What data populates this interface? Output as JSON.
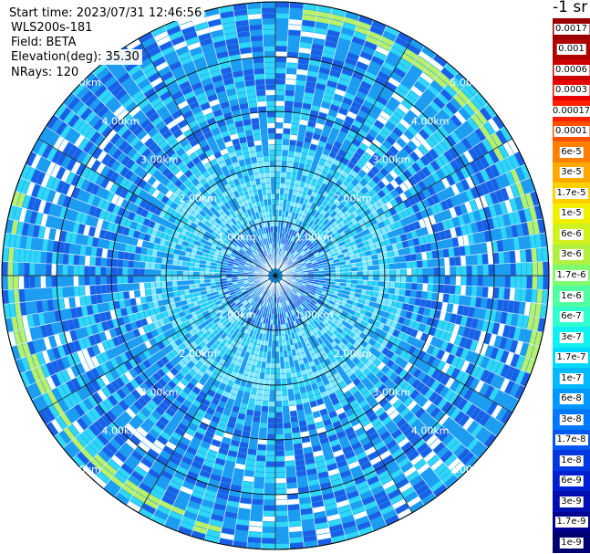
{
  "info": {
    "start_time": "Start time: 2023/07/31 12:46:56",
    "instrument": "WLS200s-181",
    "field": "Field: BETA",
    "elevation": "Elevation(deg): 35.30",
    "nrays": "NRays: 120"
  },
  "ranges": [
    {
      "km": 1,
      "label": "1.00km"
    },
    {
      "km": 2,
      "label": "2.00km"
    },
    {
      "km": 3,
      "label": "3.00km"
    },
    {
      "km": 4,
      "label": "4.00km"
    },
    {
      "km": 5,
      "label": "5.00km"
    }
  ],
  "colorbar": {
    "title": "-1 sr",
    "labels": [
      "0.0017",
      "0.001",
      "0.0006",
      "0.0003",
      "0.00017",
      "0.0001",
      "6e-5",
      "3e-5",
      "1.7e-5",
      "1e-5",
      "6e-6",
      "3e-6",
      "1.7e-6",
      "1e-6",
      "6e-7",
      "3e-7",
      "1.7e-7",
      "1e-7",
      "6e-8",
      "3e-8",
      "1.7e-8",
      "1e-8",
      "6e-9",
      "3e-9",
      "1.7e-9",
      "1e-9"
    ],
    "colors": [
      "#9a0000",
      "#b00000",
      "#cc0000",
      "#e80000",
      "#ff2000",
      "#ff5000",
      "#ff8000",
      "#ffa800",
      "#ffd000",
      "#f0f000",
      "#d0f020",
      "#b0f040",
      "#80ff70",
      "#50ffa0",
      "#30ffd0",
      "#10f0f0",
      "#00d8ff",
      "#00b8ff",
      "#0098ff",
      "#0078ff",
      "#0058f0",
      "#0038e0",
      "#0020d0",
      "#0010b0",
      "#000090",
      "#000070"
    ]
  },
  "colors": {
    "sky": "#1c9df2",
    "deep": "#1a5fe6",
    "cyan": "#2fd6f7",
    "ring": "#b8f06a"
  }
}
